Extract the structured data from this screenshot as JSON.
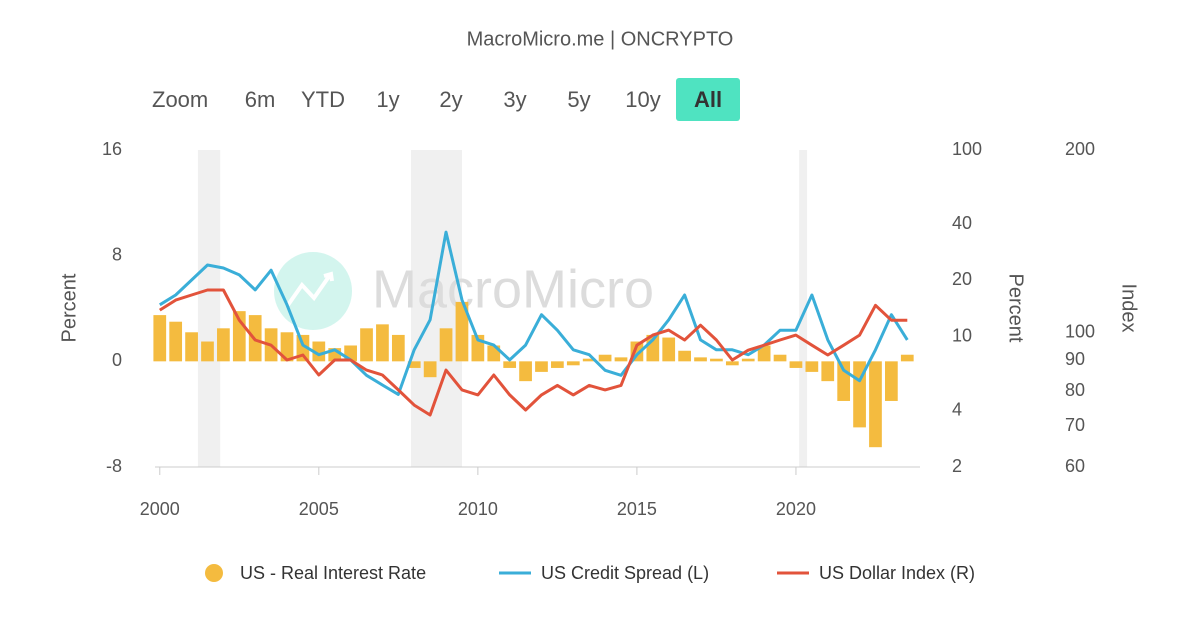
{
  "header": {
    "title": "MacroMicro.me | ONCRYPTO"
  },
  "zoom": {
    "label": "Zoom",
    "buttons": [
      "6m",
      "YTD",
      "1y",
      "2y",
      "3y",
      "5y",
      "10y",
      "All"
    ],
    "active": "All"
  },
  "chart_data": {
    "type": "bar-line",
    "watermark": "MacroMicro",
    "x": [
      2000,
      2000.5,
      2001,
      2001.5,
      2002,
      2002.5,
      2003,
      2003.5,
      2004,
      2004.5,
      2005,
      2005.5,
      2006,
      2006.5,
      2007,
      2007.5,
      2008,
      2008.5,
      2009,
      2009.5,
      2010,
      2010.5,
      2011,
      2011.5,
      2012,
      2012.5,
      2013,
      2013.5,
      2014,
      2014.5,
      2015,
      2015.5,
      2016,
      2016.5,
      2017,
      2017.5,
      2018,
      2018.5,
      2019,
      2019.5,
      2020,
      2020.5,
      2021,
      2021.5,
      2022,
      2022.5,
      2023,
      2023.5
    ],
    "xlim": [
      1999.85,
      2023.9
    ],
    "xticks": [
      2000,
      2005,
      2010,
      2015,
      2020
    ],
    "ylim": [
      -8,
      16
    ],
    "yticks": [
      -8,
      0,
      8,
      16
    ],
    "ylabel": "Percent",
    "y2lim": [
      2,
      100
    ],
    "y2ticks": [
      2,
      4,
      10,
      20,
      40,
      100
    ],
    "y2label": "Percent",
    "y2log": true,
    "y3lim": [
      60,
      200
    ],
    "y3ticks": [
      60,
      70,
      80,
      90,
      100,
      200
    ],
    "y3label": "Index",
    "y3log": true,
    "shaded_periods": [
      [
        2001.2,
        2001.9
      ],
      [
        2007.9,
        2009.5
      ],
      [
        2020.1,
        2020.35
      ]
    ],
    "series": [
      {
        "name": "US - Real Interest Rate",
        "type": "bar",
        "axis": "y",
        "color": "#f4bb3f",
        "values": [
          3.5,
          3,
          2.2,
          1.5,
          2.5,
          3.8,
          3.5,
          2.5,
          2.2,
          2,
          1.5,
          1,
          1.2,
          2.5,
          2.8,
          2,
          -0.5,
          -1.2,
          2.5,
          4.5,
          2,
          1.2,
          -0.5,
          -1.5,
          -0.8,
          -0.5,
          -0.3,
          0.2,
          0.5,
          0.3,
          1.5,
          2,
          1.8,
          0.8,
          0.3,
          0.2,
          -0.3,
          0.2,
          1.2,
          0.5,
          -0.5,
          -0.8,
          -1.5,
          -3,
          -5,
          -6.5,
          -3,
          0.5
        ]
      },
      {
        "name": "US Credit Spread (L)",
        "type": "line",
        "axis": "y2",
        "color": "#3aaed8",
        "values": [
          14.8,
          16.7,
          20.1,
          24.2,
          23.3,
          21.4,
          17.8,
          22.7,
          14.8,
          9,
          8,
          8.5,
          7.5,
          6.2,
          5.5,
          4.9,
          8.5,
          12.3,
          36.3,
          15.7,
          9.6,
          9,
          7.5,
          9,
          13.1,
          10.8,
          8.5,
          8,
          6.6,
          6.2,
          8,
          9.6,
          12.3,
          16.7,
          9.6,
          8.5,
          8.5,
          8,
          9,
          10.8,
          10.8,
          16.7,
          9.6,
          6.6,
          5.8,
          8.5,
          13.1,
          9.6
        ]
      },
      {
        "name": "US Dollar Index (R)",
        "type": "line",
        "axis": "y3",
        "color": "#e2533b",
        "values": [
          108.9,
          113.1,
          115.3,
          117.5,
          117.5,
          104.8,
          97.2,
          95.3,
          90.1,
          91.8,
          85.1,
          90.1,
          90.1,
          86.7,
          85.1,
          80.4,
          75.9,
          73.1,
          86.7,
          80.4,
          78.9,
          85.1,
          78.9,
          74.5,
          78.9,
          81.8,
          78.9,
          81.8,
          80.4,
          81.8,
          95.3,
          99,
          100.9,
          97.2,
          102.8,
          97.2,
          90.1,
          93.5,
          95.3,
          97.2,
          99,
          95.3,
          91.8,
          95.3,
          99,
          110.9,
          104.8,
          104.8
        ]
      }
    ]
  }
}
